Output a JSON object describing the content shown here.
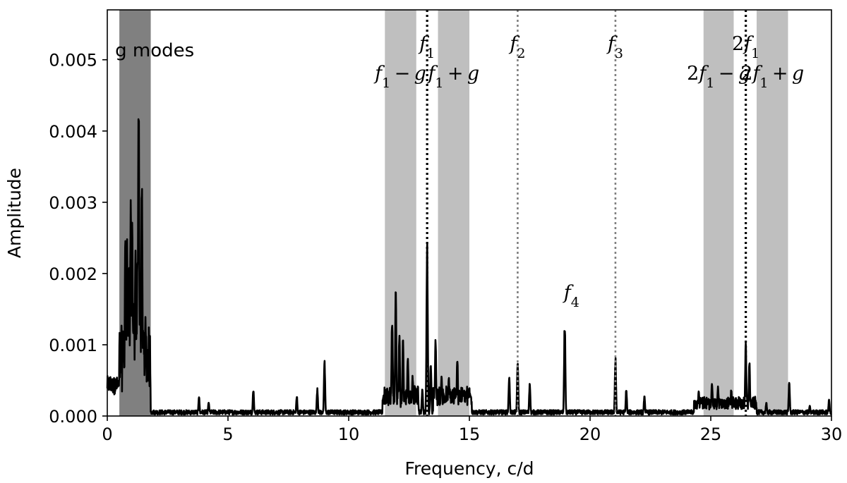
{
  "chart_data": {
    "type": "line",
    "title": "",
    "xlabel": "Frequency, c/d",
    "ylabel": "Amplitude",
    "xlim": [
      0,
      30
    ],
    "ylim": [
      0,
      0.0057
    ],
    "xticks": [
      0,
      5,
      10,
      15,
      20,
      25,
      30
    ],
    "xtick_labels": [
      "0",
      "5",
      "10",
      "15",
      "20",
      "25",
      "30"
    ],
    "yticks": [
      0,
      0.001,
      0.002,
      0.003,
      0.004,
      0.005
    ],
    "ytick_labels": [
      "0.000",
      "0.001",
      "0.002",
      "0.003",
      "0.004",
      "0.005"
    ],
    "grid": false,
    "colors": {
      "line": "#000000",
      "band_light": "#bfbfbf",
      "band_dark": "#808080",
      "dotted_black": "#000000",
      "dotted_grey": "#808080"
    },
    "shaded_bands": [
      {
        "x0": 0.5,
        "x1": 1.8,
        "shade": "dark",
        "label": "g modes"
      },
      {
        "x0": 11.5,
        "x1": 12.8,
        "shade": "light",
        "label": "f1 − g"
      },
      {
        "x0": 13.7,
        "x1": 15.0,
        "shade": "light",
        "label": "f1 + g"
      },
      {
        "x0": 24.7,
        "x1": 25.95,
        "shade": "light",
        "label": "2f1 − g"
      },
      {
        "x0": 26.9,
        "x1": 28.2,
        "shade": "light",
        "label": "2f1 + g"
      }
    ],
    "vertical_lines": [
      {
        "x": 13.25,
        "style": "dotted",
        "color": "black",
        "label": "f1"
      },
      {
        "x": 17.0,
        "style": "dotted",
        "color": "grey",
        "label": "f2"
      },
      {
        "x": 21.05,
        "style": "dotted",
        "color": "grey",
        "label": "f3"
      },
      {
        "x": 26.45,
        "style": "dotted",
        "color": "black",
        "label": "2f1"
      }
    ],
    "annotations": [
      {
        "text": "f4",
        "x": 19.0,
        "y": 0.0017
      }
    ],
    "peaks": [
      {
        "x": 0.55,
        "y": 0.0009
      },
      {
        "x": 0.65,
        "y": 0.0012
      },
      {
        "x": 0.75,
        "y": 0.0027
      },
      {
        "x": 0.82,
        "y": 0.0025
      },
      {
        "x": 0.9,
        "y": 0.0023
      },
      {
        "x": 0.97,
        "y": 0.0031
      },
      {
        "x": 1.03,
        "y": 0.0029
      },
      {
        "x": 1.1,
        "y": 0.0017
      },
      {
        "x": 1.17,
        "y": 0.0025
      },
      {
        "x": 1.25,
        "y": 0.0024
      },
      {
        "x": 1.3,
        "y": 0.0047
      },
      {
        "x": 1.36,
        "y": 0.002
      },
      {
        "x": 1.43,
        "y": 0.0036
      },
      {
        "x": 1.5,
        "y": 0.0013
      },
      {
        "x": 1.58,
        "y": 0.0015
      },
      {
        "x": 1.68,
        "y": 0.0008
      },
      {
        "x": 3.8,
        "y": 0.00028
      },
      {
        "x": 4.2,
        "y": 0.0002
      },
      {
        "x": 6.05,
        "y": 0.0004
      },
      {
        "x": 7.85,
        "y": 0.0003
      },
      {
        "x": 8.7,
        "y": 0.0004
      },
      {
        "x": 9.0,
        "y": 0.00078
      },
      {
        "x": 11.6,
        "y": 0.0004
      },
      {
        "x": 11.8,
        "y": 0.0015
      },
      {
        "x": 11.95,
        "y": 0.0018
      },
      {
        "x": 12.1,
        "y": 0.0012
      },
      {
        "x": 12.25,
        "y": 0.0011
      },
      {
        "x": 12.45,
        "y": 0.0009
      },
      {
        "x": 12.65,
        "y": 0.0006
      },
      {
        "x": 13.05,
        "y": 0.0004
      },
      {
        "x": 13.25,
        "y": 0.0026
      },
      {
        "x": 13.4,
        "y": 0.0008
      },
      {
        "x": 13.6,
        "y": 0.0011
      },
      {
        "x": 13.85,
        "y": 0.0006
      },
      {
        "x": 14.15,
        "y": 0.0006
      },
      {
        "x": 14.5,
        "y": 0.00085
      },
      {
        "x": 14.75,
        "y": 0.0004
      },
      {
        "x": 15.0,
        "y": 0.00035
      },
      {
        "x": 16.65,
        "y": 0.0006
      },
      {
        "x": 17.0,
        "y": 0.00078
      },
      {
        "x": 17.5,
        "y": 0.00048
      },
      {
        "x": 18.95,
        "y": 0.0014
      },
      {
        "x": 21.05,
        "y": 0.00085
      },
      {
        "x": 21.5,
        "y": 0.0004
      },
      {
        "x": 22.25,
        "y": 0.0003
      },
      {
        "x": 24.5,
        "y": 0.0004
      },
      {
        "x": 25.05,
        "y": 0.0005
      },
      {
        "x": 25.3,
        "y": 0.00045
      },
      {
        "x": 25.85,
        "y": 0.0004
      },
      {
        "x": 26.45,
        "y": 0.00105
      },
      {
        "x": 26.6,
        "y": 0.0008
      },
      {
        "x": 27.3,
        "y": 0.0002
      },
      {
        "x": 28.25,
        "y": 0.0005
      },
      {
        "x": 29.1,
        "y": 0.00015
      },
      {
        "x": 29.9,
        "y": 0.00025
      }
    ],
    "noise_level": 7e-05
  }
}
